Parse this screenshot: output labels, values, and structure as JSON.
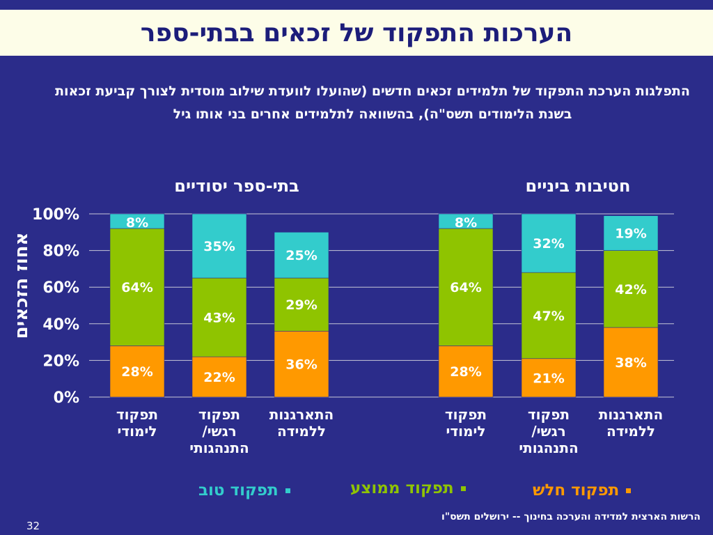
{
  "slide": {
    "title": "הערכות התפקוד של זכאים בבתי-ספר",
    "subtitle": "התפלגות הערכת התפקוד של תלמידים זכאים חדשים (שהועלו לוועדת שילוב מוסדית לצורך קביעת זכאות בשנת הלימודים תשס\"ה), בהשוואה לתלמידים אחרים בני אותו גיל",
    "footer": "הרשות הארצית למדידה והערכה בחינוך -- ירושלים תשס\"ו",
    "page_number": "32"
  },
  "colors": {
    "weak": "#ff9900",
    "average": "#8fc400",
    "good": "#33cccc",
    "background": "#2b2c8a",
    "title_bg": "#fdfde8",
    "title_text": "#1c1d7a"
  },
  "chart_data": {
    "type": "bar",
    "stacked": true,
    "percent": true,
    "ylabel": "אחוז הזכאים",
    "ylim": [
      0,
      100
    ],
    "yticks": [
      "0%",
      "20%",
      "40%",
      "60%",
      "80%",
      "100%"
    ],
    "grid": true,
    "legend_position": "bottom",
    "groups": [
      {
        "title": "בתי-ספר יסודיים",
        "categories": [
          "תפקוד לימודי",
          "תפקוד רגשי/ התנהגותי",
          "התארגנות ללמידה"
        ],
        "category_lines": [
          [
            "תפקוד",
            "לימודי"
          ],
          [
            "תפקוד",
            "רגשי/",
            "התנהגותי"
          ],
          [
            "התארגנות",
            "ללמידה"
          ]
        ],
        "series": [
          {
            "name": "תפקוד חלש",
            "values": [
              28,
              22,
              36
            ],
            "labels": [
              "28%",
              "22%",
              "36%"
            ]
          },
          {
            "name": "תפקוד ממוצע",
            "values": [
              64,
              43,
              29
            ],
            "labels": [
              "64%",
              "43%",
              "29%"
            ]
          },
          {
            "name": "תפקוד טוב",
            "values": [
              8,
              35,
              25
            ],
            "labels": [
              "8%",
              "35%",
              "25%"
            ]
          }
        ]
      },
      {
        "title": "חטיבות ביניים",
        "categories": [
          "תפקוד לימודי",
          "תפקוד רגשי/ התנהגותי",
          "התארגנות ללמידה"
        ],
        "category_lines": [
          [
            "תפקוד",
            "לימודי"
          ],
          [
            "תפקוד",
            "רגשי/",
            "התנהגותי"
          ],
          [
            "התארגנות",
            "ללמידה"
          ]
        ],
        "series": [
          {
            "name": "תפקוד חלש",
            "values": [
              28,
              21,
              38
            ],
            "labels": [
              "28%",
              "21%",
              "38%"
            ]
          },
          {
            "name": "תפקוד ממוצע",
            "values": [
              64,
              47,
              42
            ],
            "labels": [
              "64%",
              "47%",
              "42%"
            ]
          },
          {
            "name": "תפקוד טוב",
            "values": [
              8,
              32,
              19
            ],
            "labels": [
              "8%",
              "32%",
              "19%"
            ]
          }
        ]
      }
    ],
    "legend": [
      "תפקוד טוב",
      "תפקוד ממוצע",
      "תפקוד חלש"
    ]
  }
}
